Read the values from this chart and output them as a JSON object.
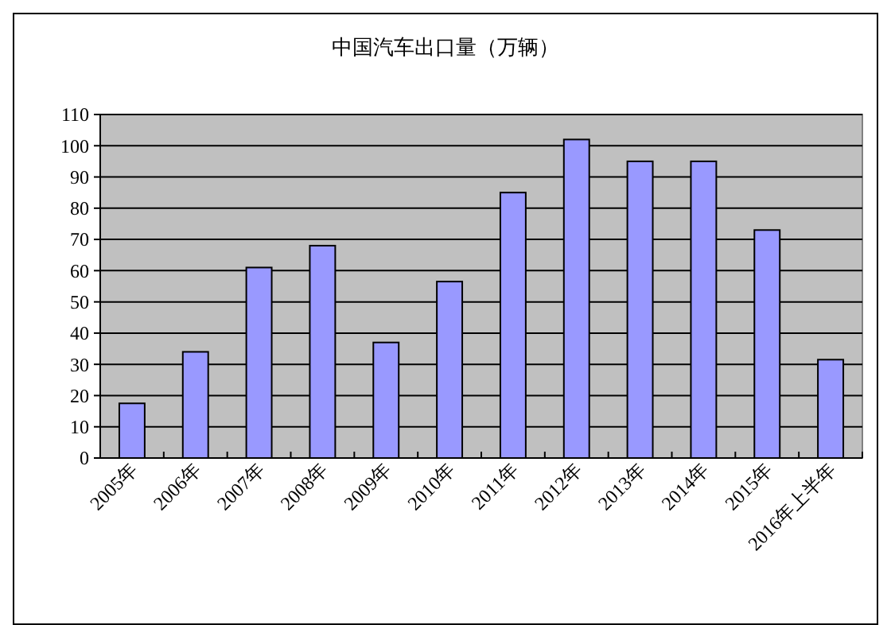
{
  "chart_data": {
    "type": "bar",
    "title": "中国汽车出口量（万辆）",
    "categories": [
      "2005年",
      "2006年",
      "2007年",
      "2008年",
      "2009年",
      "2010年",
      "2011年",
      "2012年",
      "2013年",
      "2014年",
      "2015年",
      "2016年上半年"
    ],
    "values": [
      17.5,
      34,
      61,
      68,
      37,
      56.5,
      85,
      102,
      95,
      95,
      73,
      31.5
    ],
    "color": "#9999ff",
    "ylim": [
      0,
      110
    ],
    "yticks": [
      0,
      10,
      20,
      30,
      40,
      50,
      60,
      70,
      80,
      90,
      100,
      110
    ],
    "grid": "y"
  }
}
